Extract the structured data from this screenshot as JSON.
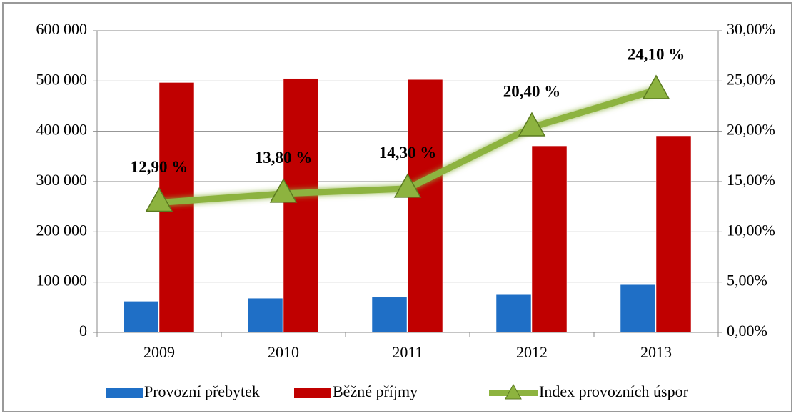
{
  "chart_data": {
    "type": "bar",
    "categories": [
      "2009",
      "2010",
      "2011",
      "2012",
      "2013"
    ],
    "series": [
      {
        "name": "Provozní přebytek",
        "color": "#1f6fc6",
        "values": [
          62000,
          68000,
          70000,
          75000,
          95000
        ]
      },
      {
        "name": "Běžné příjmy",
        "color": "#c00000",
        "values": [
          497000,
          505000,
          503000,
          371000,
          391000
        ]
      },
      {
        "name": "Index provozních úspor",
        "color": "#8db33f",
        "type": "line",
        "axis": "y2",
        "values": [
          12.9,
          13.8,
          14.3,
          20.4,
          24.1
        ],
        "value_labels": [
          "12,90 %",
          "13,80 %",
          "14,30 %",
          "20,40 %",
          "24,10 %"
        ]
      }
    ],
    "ylim": [
      0,
      600000
    ],
    "yticks": [
      0,
      {
        "value": 100000,
        "label": "100 000"
      },
      {
        "value": 200000,
        "label": "200 000"
      },
      {
        "value": 300000,
        "label": "300 000"
      },
      {
        "value": 400000,
        "label": "400 000"
      },
      {
        "value": 500000,
        "label": "500 000"
      },
      {
        "value": 600000,
        "label": "600 000"
      }
    ],
    "y2lim": [
      0,
      30
    ],
    "y2ticks": [
      {
        "value": 0,
        "label": "0,00%"
      },
      {
        "value": 5,
        "label": "5,00%"
      },
      {
        "value": 10,
        "label": "10,00%"
      },
      {
        "value": 15,
        "label": "15,00%"
      },
      {
        "value": 20,
        "label": "20,00%"
      },
      {
        "value": 25,
        "label": "25,00%"
      },
      {
        "value": 30,
        "label": "30,00%"
      }
    ],
    "legend": "bottom"
  }
}
